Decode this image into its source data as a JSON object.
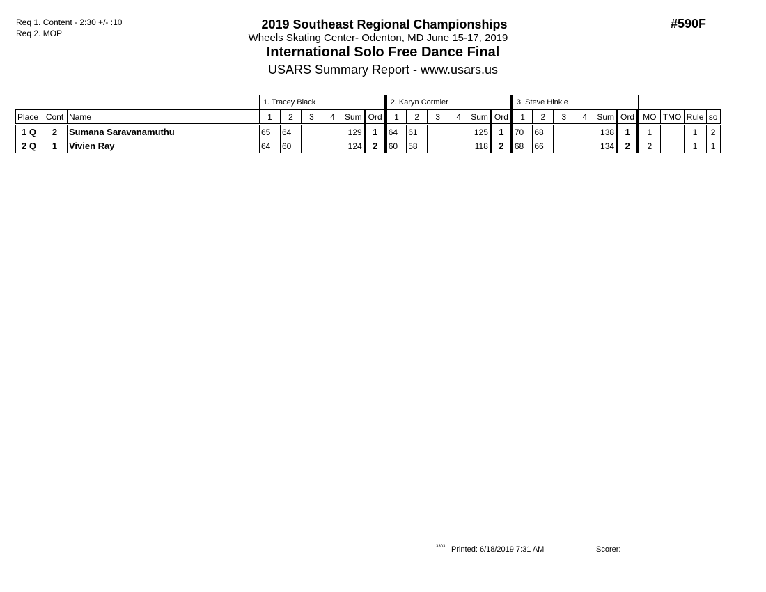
{
  "requirements": [
    "Req 1.  Content -  2:30 +/- :10",
    "Req 2.  MOP"
  ],
  "header": {
    "title": "2019 Southeast Regional Championships",
    "venue": "Wheels Skating Center- Odenton, MD  June 15-17, 2019",
    "event": "International Solo Free Dance Final",
    "report": "USARS Summary Report - www.usars.us",
    "event_number": "#590F"
  },
  "table": {
    "judges": [
      "1.  Tracey  Black",
      "2.  Karyn Cormier",
      "3.  Steve Hinkle"
    ],
    "columns": {
      "place": "Place",
      "cont": "Cont",
      "name": "Name",
      "scores": [
        "1",
        "2",
        "3",
        "4"
      ],
      "sum": "Sum",
      "ord": "Ord",
      "mo": "MO",
      "tmo": "TMO",
      "rule": "Rule",
      "so": "so"
    },
    "rows": [
      {
        "place": "1 Q",
        "cont": "2",
        "name": "Sumana Saravanamuthu",
        "judges": [
          {
            "scores": [
              "65",
              "64",
              "",
              ""
            ],
            "sum": "129",
            "ord": "1"
          },
          {
            "scores": [
              "64",
              "61",
              "",
              ""
            ],
            "sum": "125",
            "ord": "1"
          },
          {
            "scores": [
              "70",
              "68",
              "",
              ""
            ],
            "sum": "138",
            "ord": "1"
          }
        ],
        "mo": "1",
        "tmo": "",
        "rule": "1",
        "so": "2"
      },
      {
        "place": "2 Q",
        "cont": "1",
        "name": "Vivien Ray",
        "judges": [
          {
            "scores": [
              "64",
              "60",
              "",
              ""
            ],
            "sum": "124",
            "ord": "2"
          },
          {
            "scores": [
              "60",
              "58",
              "",
              ""
            ],
            "sum": "118",
            "ord": "2"
          },
          {
            "scores": [
              "68",
              "66",
              "",
              ""
            ],
            "sum": "134",
            "ord": "2"
          }
        ],
        "mo": "2",
        "tmo": "",
        "rule": "1",
        "so": "1"
      }
    ]
  },
  "footer": {
    "code": "3303",
    "printed": "Printed:  6/18/2019  7:31 AM",
    "scorer": "Scorer:"
  }
}
